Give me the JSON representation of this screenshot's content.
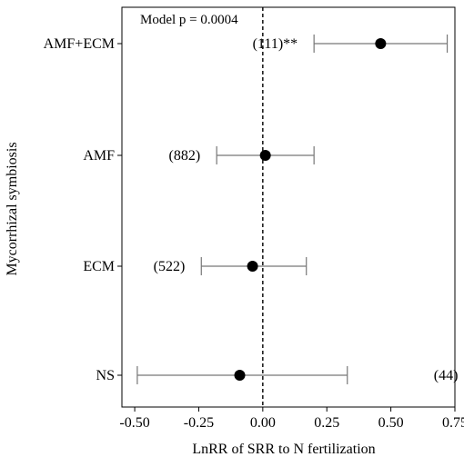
{
  "chart_data": {
    "type": "forest",
    "xlabel": "LnRR of SRR to N fertilization",
    "ylabel": "Mycorrhizal symbiosis",
    "annotation": "Model p = 0.0004",
    "xlim": [
      -0.55,
      0.75
    ],
    "xticks": [
      "-0.50",
      "-0.25",
      "0.00",
      "0.25",
      "0.50",
      "0.75"
    ],
    "xtick_values": [
      -0.5,
      -0.25,
      0,
      0.25,
      0.5,
      0.75
    ],
    "reference_line": 0,
    "categories": [
      "AMF+ECM",
      "AMF",
      "ECM",
      "NS"
    ],
    "estimates": [
      0.46,
      0.01,
      -0.04,
      -0.09
    ],
    "ci_lower": [
      0.2,
      -0.18,
      -0.24,
      -0.49
    ],
    "ci_upper": [
      0.72,
      0.2,
      0.17,
      0.33
    ],
    "sample_labels": [
      "(111)**",
      "(882)",
      "(522)",
      "(44)"
    ],
    "label_side": [
      "left",
      "left",
      "left",
      "right"
    ],
    "colors": {
      "point": "#000000",
      "ci": "#777777",
      "axis": "#000000"
    }
  }
}
